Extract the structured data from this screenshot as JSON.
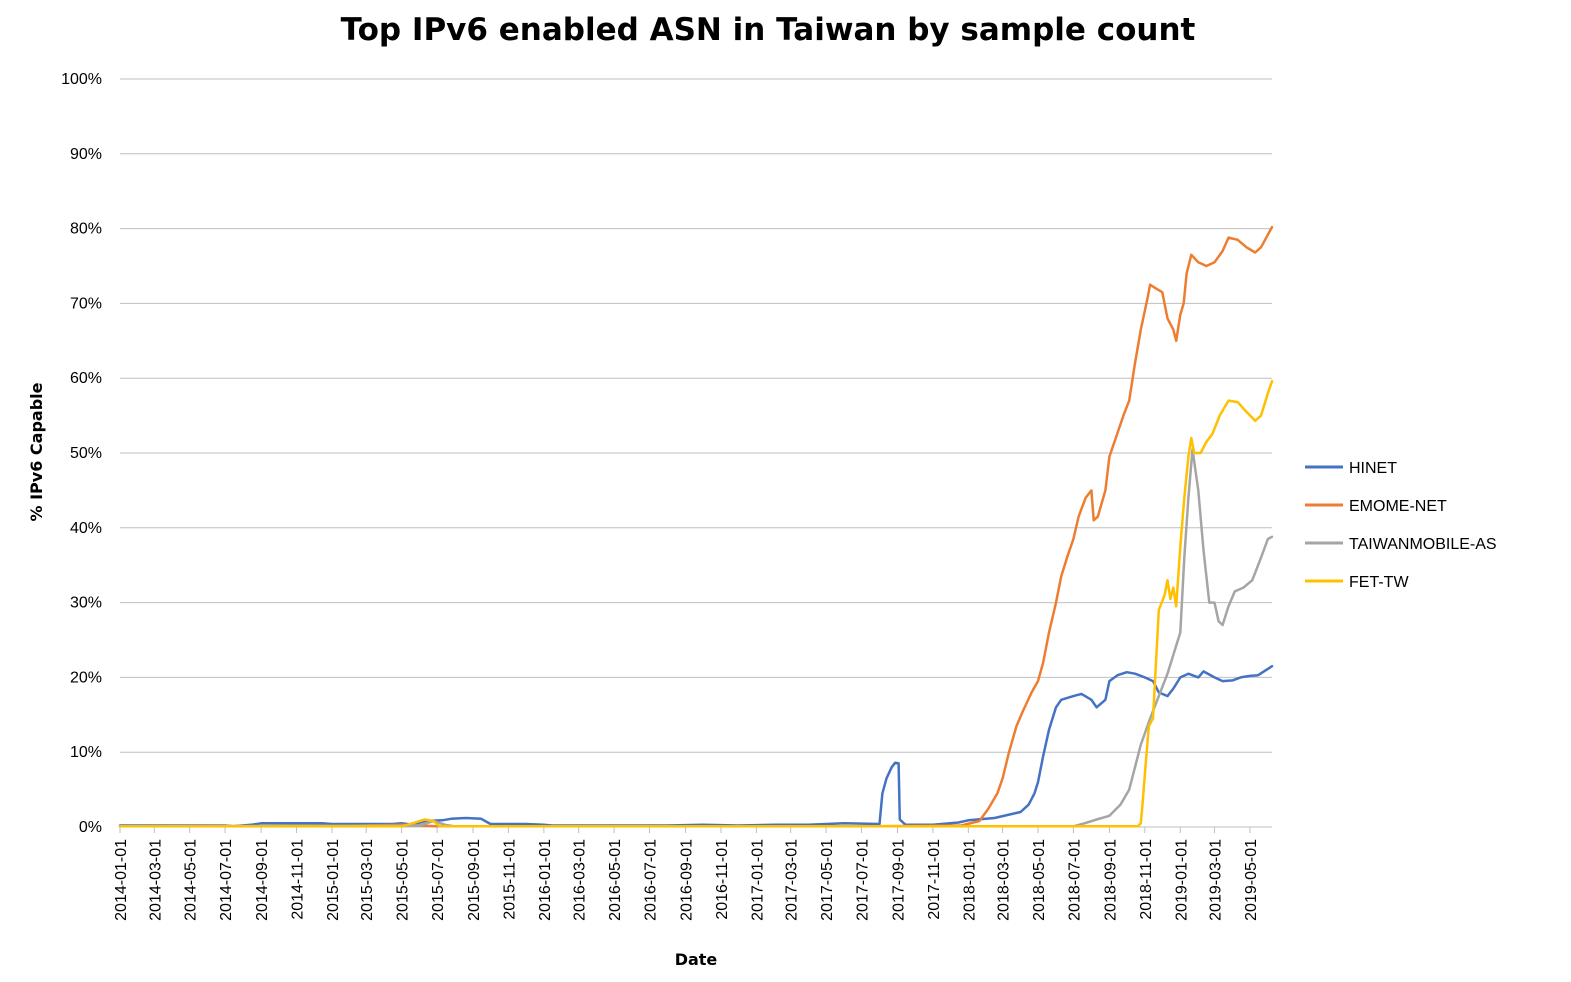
{
  "chart_data": {
    "type": "line",
    "title": "Top IPv6 enabled ASN in Taiwan by sample count",
    "xlabel": "Date",
    "ylabel": "% IPv6 Capable",
    "xlim": [
      "2014-01-01",
      "2019-06-08"
    ],
    "ylim": [
      0,
      100
    ],
    "yticks": [
      "0%",
      "10%",
      "20%",
      "30%",
      "40%",
      "50%",
      "60%",
      "70%",
      "80%",
      "90%",
      "100%"
    ],
    "xticks": [
      "2014-01-01",
      "2014-03-01",
      "2014-05-01",
      "2014-07-01",
      "2014-09-01",
      "2014-11-01",
      "2015-01-01",
      "2015-03-01",
      "2015-05-01",
      "2015-07-01",
      "2015-09-01",
      "2015-11-01",
      "2016-01-01",
      "2016-03-01",
      "2016-05-01",
      "2016-07-01",
      "2016-09-01",
      "2016-11-01",
      "2017-01-01",
      "2017-03-01",
      "2017-05-01",
      "2017-07-01",
      "2017-09-01",
      "2017-11-01",
      "2018-01-01",
      "2018-03-01",
      "2018-05-01",
      "2018-07-01",
      "2018-09-01",
      "2018-11-01",
      "2019-01-01",
      "2019-03-01",
      "2019-05-01"
    ],
    "grid": "horizontal",
    "legend_position": "right",
    "series": [
      {
        "name": "HINET",
        "color": "#4472C4",
        "points": [
          [
            "2014-01-01",
            0.2
          ],
          [
            "2014-07-01",
            0.2
          ],
          [
            "2014-07-15",
            0.1
          ],
          [
            "2014-08-15",
            0.3
          ],
          [
            "2014-09-01",
            0.5
          ],
          [
            "2014-12-15",
            0.5
          ],
          [
            "2015-01-01",
            0.4
          ],
          [
            "2015-04-15",
            0.4
          ],
          [
            "2015-05-01",
            0.5
          ],
          [
            "2015-05-20",
            0.3
          ],
          [
            "2015-06-10",
            0.8
          ],
          [
            "2015-07-10",
            0.9
          ],
          [
            "2015-07-25",
            1.1
          ],
          [
            "2015-08-20",
            1.2
          ],
          [
            "2015-09-15",
            1.1
          ],
          [
            "2015-10-01",
            0.4
          ],
          [
            "2015-12-01",
            0.4
          ],
          [
            "2016-01-01",
            0.3
          ],
          [
            "2016-01-15",
            0.2
          ],
          [
            "2016-08-01",
            0.2
          ],
          [
            "2016-10-01",
            0.3
          ],
          [
            "2016-12-01",
            0.2
          ],
          [
            "2017-02-01",
            0.3
          ],
          [
            "2017-04-01",
            0.3
          ],
          [
            "2017-06-01",
            0.5
          ],
          [
            "2017-08-01",
            0.4
          ],
          [
            "2017-08-06",
            4.5
          ],
          [
            "2017-08-13",
            6.5
          ],
          [
            "2017-08-22",
            8.0
          ],
          [
            "2017-08-28",
            8.6
          ],
          [
            "2017-09-03",
            8.5
          ],
          [
            "2017-09-05",
            1.0
          ],
          [
            "2017-09-15",
            0.3
          ],
          [
            "2017-11-01",
            0.3
          ],
          [
            "2017-12-15",
            0.6
          ],
          [
            "2018-01-01",
            0.9
          ],
          [
            "2018-02-15",
            1.2
          ],
          [
            "2018-04-01",
            2.0
          ],
          [
            "2018-04-15",
            3.0
          ],
          [
            "2018-04-25",
            4.5
          ],
          [
            "2018-05-01",
            6.0
          ],
          [
            "2018-05-10",
            9.5
          ],
          [
            "2018-05-20",
            13.0
          ],
          [
            "2018-06-01",
            16.0
          ],
          [
            "2018-06-10",
            17.0
          ],
          [
            "2018-07-01",
            17.5
          ],
          [
            "2018-07-15",
            17.8
          ],
          [
            "2018-08-01",
            17.0
          ],
          [
            "2018-08-10",
            16.0
          ],
          [
            "2018-08-25",
            17.0
          ],
          [
            "2018-09-01",
            19.5
          ],
          [
            "2018-09-15",
            20.3
          ],
          [
            "2018-10-01",
            20.7
          ],
          [
            "2018-10-15",
            20.5
          ],
          [
            "2018-11-01",
            20.0
          ],
          [
            "2018-11-15",
            19.5
          ],
          [
            "2018-11-25",
            18.0
          ],
          [
            "2018-12-10",
            17.5
          ],
          [
            "2018-12-20",
            18.5
          ],
          [
            "2019-01-01",
            20.0
          ],
          [
            "2019-01-15",
            20.5
          ],
          [
            "2019-02-01",
            20.0
          ],
          [
            "2019-02-10",
            20.8
          ],
          [
            "2019-03-01",
            20.0
          ],
          [
            "2019-03-15",
            19.5
          ],
          [
            "2019-04-01",
            19.6
          ],
          [
            "2019-04-15",
            20.0
          ],
          [
            "2019-05-01",
            20.2
          ],
          [
            "2019-05-15",
            20.3
          ],
          [
            "2019-06-08",
            21.5
          ]
        ]
      },
      {
        "name": "EMOME-NET",
        "color": "#ED7D31",
        "points": [
          [
            "2014-01-01",
            0.1
          ],
          [
            "2014-12-31",
            0.1
          ],
          [
            "2015-03-01",
            0.2
          ],
          [
            "2015-05-01",
            0.3
          ],
          [
            "2015-07-01",
            0.1
          ],
          [
            "2017-06-01",
            0.1
          ],
          [
            "2017-07-10",
            0.1
          ],
          [
            "2017-12-20",
            0.2
          ],
          [
            "2018-01-20",
            0.8
          ],
          [
            "2018-02-05",
            2.5
          ],
          [
            "2018-02-20",
            4.5
          ],
          [
            "2018-03-01",
            6.5
          ],
          [
            "2018-03-12",
            10.0
          ],
          [
            "2018-03-25",
            13.5
          ],
          [
            "2018-04-05",
            15.5
          ],
          [
            "2018-04-20",
            18.0
          ],
          [
            "2018-05-01",
            19.5
          ],
          [
            "2018-05-10",
            22.0
          ],
          [
            "2018-05-20",
            26.0
          ],
          [
            "2018-06-01",
            30.0
          ],
          [
            "2018-06-10",
            33.5
          ],
          [
            "2018-06-20",
            36.0
          ],
          [
            "2018-07-01",
            38.5
          ],
          [
            "2018-07-10",
            41.5
          ],
          [
            "2018-07-22",
            44.0
          ],
          [
            "2018-08-01",
            45.0
          ],
          [
            "2018-08-05",
            41.0
          ],
          [
            "2018-08-12",
            41.5
          ],
          [
            "2018-08-25",
            45.0
          ],
          [
            "2018-09-01",
            49.5
          ],
          [
            "2018-09-12",
            52.0
          ],
          [
            "2018-09-25",
            55.0
          ],
          [
            "2018-10-05",
            57.0
          ],
          [
            "2018-10-15",
            62.0
          ],
          [
            "2018-10-25",
            66.5
          ],
          [
            "2018-11-05",
            70.5
          ],
          [
            "2018-11-10",
            72.5
          ],
          [
            "2018-11-20",
            72.0
          ],
          [
            "2018-12-01",
            71.5
          ],
          [
            "2018-12-10",
            68.0
          ],
          [
            "2018-12-20",
            66.5
          ],
          [
            "2018-12-25",
            65.0
          ],
          [
            "2019-01-01",
            68.5
          ],
          [
            "2019-01-07",
            70.0
          ],
          [
            "2019-01-12",
            74.0
          ],
          [
            "2019-01-20",
            76.5
          ],
          [
            "2019-02-01",
            75.5
          ],
          [
            "2019-02-15",
            75.0
          ],
          [
            "2019-03-01",
            75.5
          ],
          [
            "2019-03-15",
            77.0
          ],
          [
            "2019-03-25",
            78.8
          ],
          [
            "2019-04-10",
            78.5
          ],
          [
            "2019-04-25",
            77.5
          ],
          [
            "2019-05-10",
            76.8
          ],
          [
            "2019-05-20",
            77.5
          ],
          [
            "2019-06-08",
            80.2
          ]
        ]
      },
      {
        "name": "TAIWANMOBILE-AS",
        "color": "#A5A5A5",
        "points": [
          [
            "2014-01-01",
            0.1
          ],
          [
            "2015-06-01",
            0.2
          ],
          [
            "2015-06-25",
            0.8
          ],
          [
            "2015-07-15",
            0.3
          ],
          [
            "2015-08-01",
            0.1
          ],
          [
            "2018-07-01",
            0.1
          ],
          [
            "2018-07-20",
            0.5
          ],
          [
            "2018-08-10",
            1.0
          ],
          [
            "2018-09-01",
            1.5
          ],
          [
            "2018-09-20",
            3.0
          ],
          [
            "2018-10-05",
            5.0
          ],
          [
            "2018-10-15",
            8.0
          ],
          [
            "2018-10-25",
            11.0
          ],
          [
            "2018-11-10",
            14.5
          ],
          [
            "2018-11-25",
            17.5
          ],
          [
            "2018-12-10",
            20.5
          ],
          [
            "2018-12-20",
            23.0
          ],
          [
            "2019-01-01",
            26.0
          ],
          [
            "2019-01-08",
            36.0
          ],
          [
            "2019-01-15",
            44.0
          ],
          [
            "2019-01-22",
            50.5
          ],
          [
            "2019-02-01",
            45.0
          ],
          [
            "2019-02-10",
            37.0
          ],
          [
            "2019-02-20",
            30.0
          ],
          [
            "2019-03-01",
            30.0
          ],
          [
            "2019-03-08",
            27.5
          ],
          [
            "2019-03-15",
            27.0
          ],
          [
            "2019-03-25",
            29.5
          ],
          [
            "2019-04-05",
            31.5
          ],
          [
            "2019-04-20",
            32.0
          ],
          [
            "2019-05-05",
            33.0
          ],
          [
            "2019-05-20",
            36.0
          ],
          [
            "2019-06-01",
            38.5
          ],
          [
            "2019-06-08",
            38.8
          ]
        ]
      },
      {
        "name": "FET-TW",
        "color": "#FFC000",
        "points": [
          [
            "2014-01-01",
            0.1
          ],
          [
            "2015-05-01",
            0.1
          ],
          [
            "2015-05-20",
            0.5
          ],
          [
            "2015-06-10",
            1.0
          ],
          [
            "2015-06-25",
            0.8
          ],
          [
            "2015-07-05",
            0.1
          ],
          [
            "2018-10-20",
            0.1
          ],
          [
            "2018-10-25",
            0.5
          ],
          [
            "2018-10-28",
            3.0
          ],
          [
            "2018-11-02",
            8.0
          ],
          [
            "2018-11-08",
            13.5
          ],
          [
            "2018-11-15",
            14.5
          ],
          [
            "2018-11-25",
            29.0
          ],
          [
            "2018-12-05",
            31.0
          ],
          [
            "2018-12-10",
            33.0
          ],
          [
            "2018-12-15",
            30.5
          ],
          [
            "2018-12-20",
            32.0
          ],
          [
            "2018-12-25",
            29.5
          ],
          [
            "2019-01-01",
            37.5
          ],
          [
            "2019-01-08",
            44.0
          ],
          [
            "2019-01-15",
            49.5
          ],
          [
            "2019-01-20",
            52.0
          ],
          [
            "2019-01-25",
            50.0
          ],
          [
            "2019-02-05",
            50.0
          ],
          [
            "2019-02-15",
            51.5
          ],
          [
            "2019-02-25",
            52.5
          ],
          [
            "2019-03-10",
            55.0
          ],
          [
            "2019-03-25",
            57.0
          ],
          [
            "2019-04-10",
            56.8
          ],
          [
            "2019-04-25",
            55.5
          ],
          [
            "2019-05-10",
            54.3
          ],
          [
            "2019-05-20",
            55.0
          ],
          [
            "2019-06-01",
            58.0
          ],
          [
            "2019-06-08",
            59.6
          ]
        ]
      }
    ]
  }
}
